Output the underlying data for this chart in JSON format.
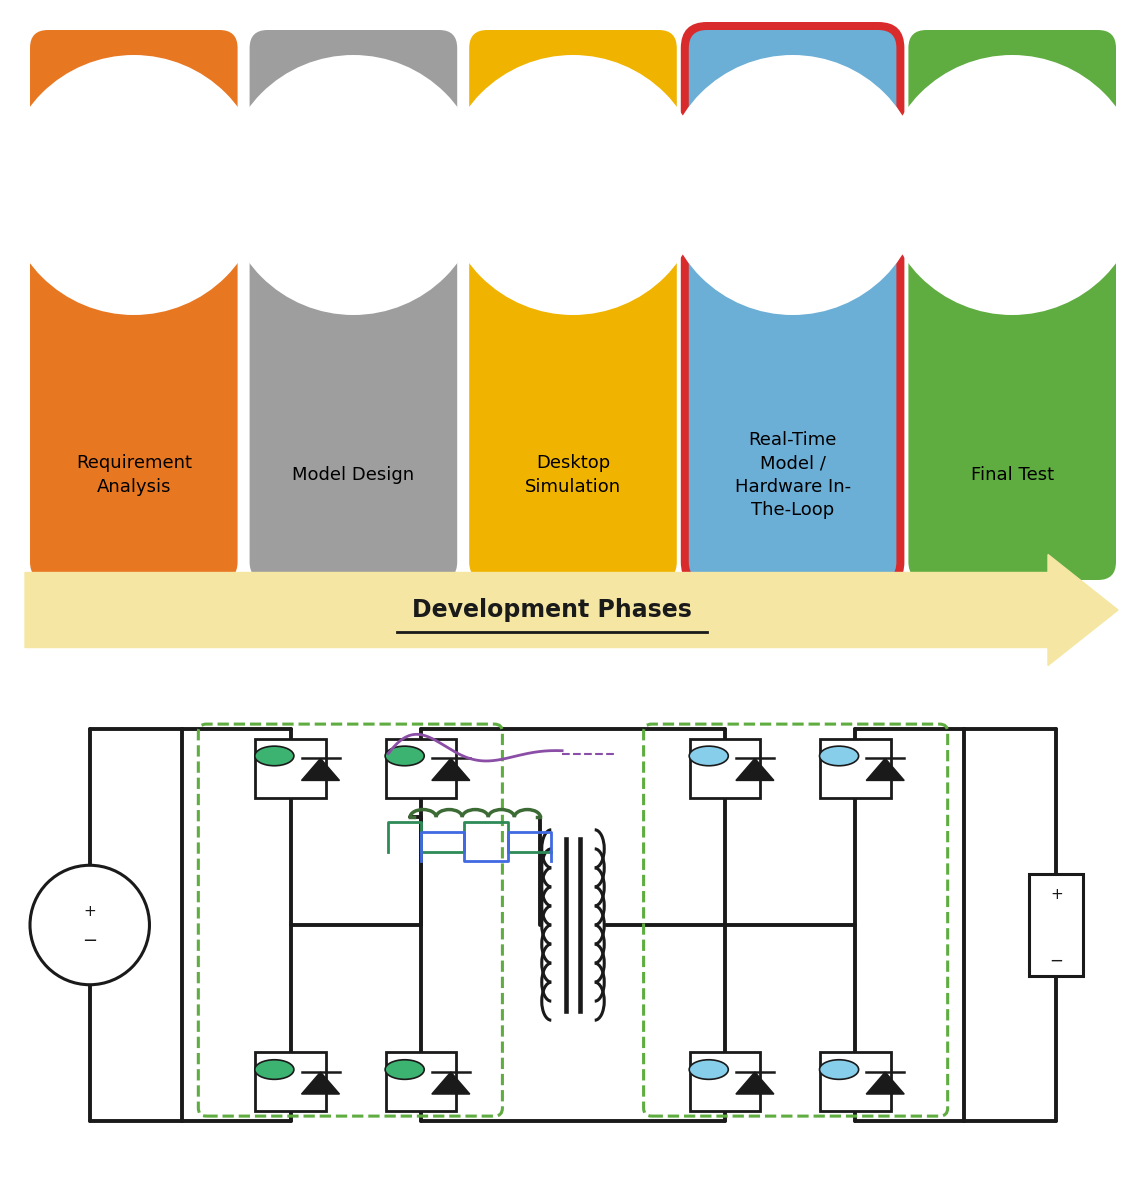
{
  "fig_width": 11.46,
  "fig_height": 12.0,
  "bg_color": "#ffffff",
  "panels": [
    {
      "color": "#E87722",
      "label": "Requirement\nAnalysis",
      "border_color": null
    },
    {
      "color": "#9E9E9E",
      "label": "Model Design",
      "border_color": null
    },
    {
      "color": "#F0B400",
      "label": "Desktop\nSimulation",
      "border_color": null
    },
    {
      "color": "#6BAED6",
      "label": "Real-Time\nModel /\nHardware In-\nThe-Loop",
      "border_color": "#D92B2B"
    },
    {
      "color": "#5FAD41",
      "label": "Final Test",
      "border_color": null
    }
  ],
  "arrow_color": "#F5E6A3",
  "arrow_text": "Development Phases",
  "wire_color": "#1a1a1a",
  "dashed_color": "#5FAD41",
  "gate_color_green": "#3CB371",
  "gate_color_blue": "#87CEEB",
  "waveform_purple": "#8B4EA6",
  "waveform_teal": "#2E8B57",
  "waveform_blue": "#4169E1",
  "inductor_color": "#3D6B35",
  "transformer_color": "#1a1a1a"
}
